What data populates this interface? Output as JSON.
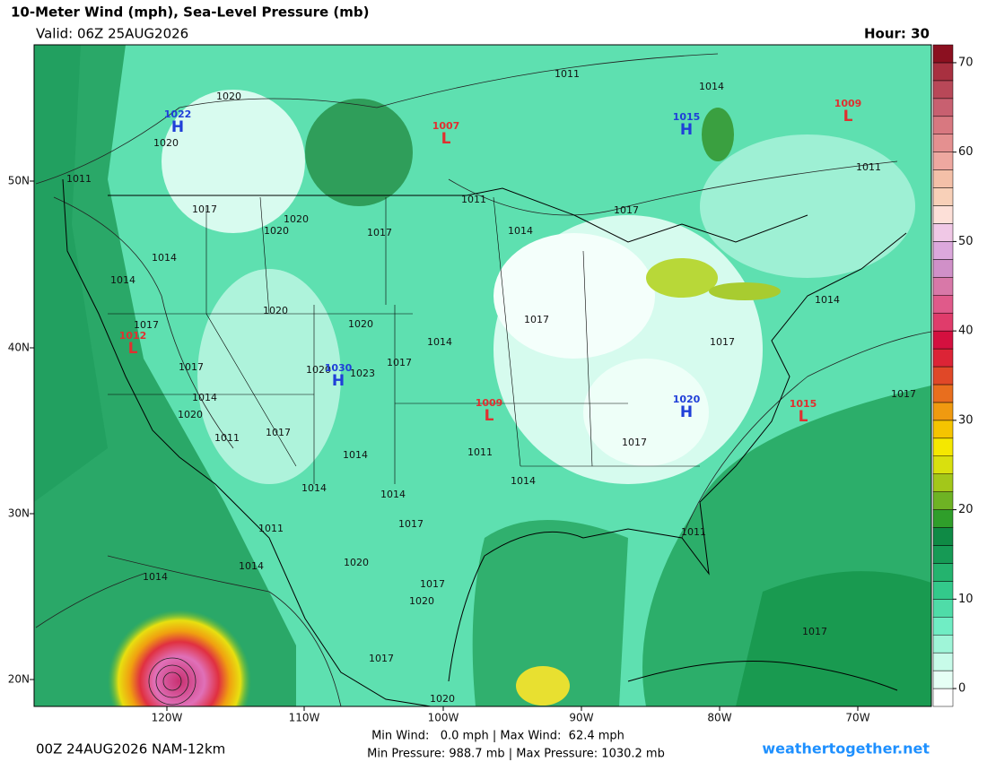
{
  "header": {
    "title": "10-Meter Wind (mph), Sea-Level Pressure (mb)",
    "valid": "Valid: 06Z 25AUG2026",
    "hour": "Hour: 30"
  },
  "map": {
    "lat_labels": [
      "50N",
      "40N",
      "30N",
      "20N"
    ],
    "lon_labels": [
      "120W",
      "110W",
      "100W",
      "90W",
      "80W",
      "70W"
    ]
  },
  "contour_labels": [
    1020,
    1020,
    1011,
    1014,
    1011,
    1011,
    1017,
    1020,
    1020,
    1017,
    1011,
    1014,
    1017,
    1014,
    1014,
    1020,
    1020,
    1017,
    1014,
    1017,
    1017,
    1014,
    1017,
    1020,
    1023,
    1017,
    1014,
    1020,
    1017,
    1011,
    1017,
    1014,
    1011,
    1017,
    1014,
    1014,
    1014,
    1017,
    1011,
    1011,
    1014,
    1020,
    1014,
    1017,
    1020,
    1017,
    1017,
    1020
  ],
  "centers": [
    {
      "letter": "H",
      "pressure": 1022,
      "color": "#1f3fd8"
    },
    {
      "letter": "H",
      "pressure": 1015,
      "color": "#1f3fd8"
    },
    {
      "letter": "L",
      "pressure": 1009,
      "color": "#e03030"
    },
    {
      "letter": "L",
      "pressure": 1007,
      "color": "#e03030"
    },
    {
      "letter": "L",
      "pressure": 1012,
      "color": "#e03030"
    },
    {
      "letter": "H",
      "pressure": 1030,
      "color": "#1f3fd8"
    },
    {
      "letter": "L",
      "pressure": 1009,
      "color": "#e03030"
    },
    {
      "letter": "H",
      "pressure": 1020,
      "color": "#1f3fd8"
    },
    {
      "letter": "L",
      "pressure": 1015,
      "color": "#e03030"
    }
  ],
  "colorbar": {
    "clim": [
      -2,
      72
    ],
    "ticks": [
      0,
      10,
      20,
      30,
      40,
      50,
      60,
      70
    ],
    "colors": [
      "#ffffff",
      "#e6fff5",
      "#c8fbe9",
      "#9ff5d8",
      "#70edc4",
      "#4fdca8",
      "#33c98b",
      "#24b36e",
      "#169a55",
      "#0f8a45",
      "#2f9e2a",
      "#6eb324",
      "#a3c71a",
      "#d9e00e",
      "#f5e800",
      "#f5c400",
      "#f09a10",
      "#e86e1e",
      "#e04828",
      "#dc2436",
      "#d4103f",
      "#e03c6b",
      "#e05a8a",
      "#d878a8",
      "#d090c8",
      "#dca8dc",
      "#f0c8e6",
      "#fde0d8",
      "#f8d0b8",
      "#f4c0a8",
      "#eea8a0",
      "#e49090",
      "#d87880",
      "#c86070",
      "#b84858",
      "#a83040",
      "#8b1020"
    ]
  },
  "footer": {
    "run": "00Z 24AUG2026 NAM-12km",
    "wind": "Min Wind:   0.0 mph | Max Wind:  62.4 mph",
    "pressure": "Min Pressure: 988.7 mb | Max Pressure: 1030.2 mb",
    "site": "weathertogether.net"
  }
}
